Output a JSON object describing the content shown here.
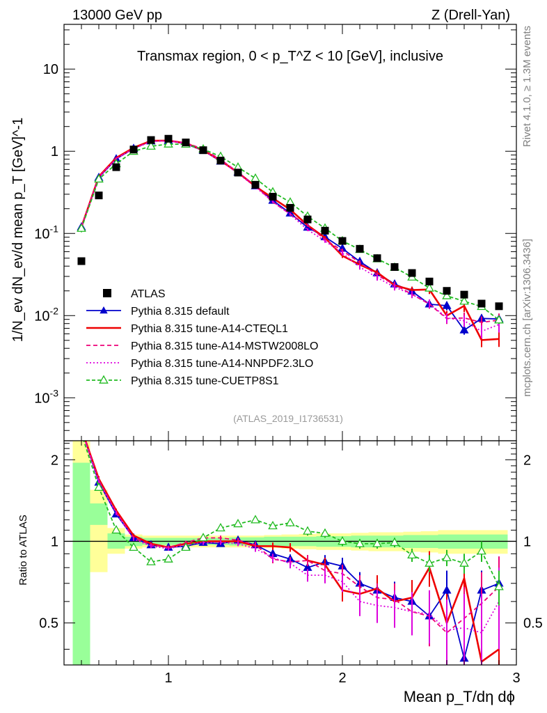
{
  "chart_data": {
    "type": "scatter",
    "header_left": "13000 GeV pp",
    "header_right": "Z (Drell-Yan)",
    "title": "Transmax region, 0 < p_T^Z < 10 [GeV], inclusive",
    "side_label_top": "Rivet 4.1.0, ≥ 1.3M events",
    "side_label_bottom": "mcplots.cern.ch [arXiv:1306.3436]",
    "analysis_ref": "(ATLAS_2019_I1736531)",
    "xlabel": "Mean p_T/dη dϕ",
    "ylabel": "1/N_ev dN_ev/d mean p_T [GeV]^-1",
    "ratio_ylabel": "Ratio to ATLAS",
    "xlim": [
      0.4,
      3.0
    ],
    "ylim": [
      0.0003,
      35
    ],
    "ratio_ylim": [
      0.35,
      2.35
    ],
    "x_ticks": [
      "1",
      "2",
      "3"
    ],
    "y_ticks": [
      "10^-3",
      "10^-2",
      "10^-1",
      "1",
      "10"
    ],
    "ratio_ticks": [
      "0.5",
      "1",
      "2"
    ],
    "x": [
      0.5,
      0.6,
      0.7,
      0.8,
      0.9,
      1.0,
      1.1,
      1.2,
      1.3,
      1.4,
      1.5,
      1.6,
      1.7,
      1.8,
      1.9,
      2.0,
      2.1,
      2.2,
      2.3,
      2.4,
      2.5,
      2.6,
      2.7,
      2.8,
      2.9
    ],
    "data": {
      "name": "ATLAS",
      "values": [
        0.046,
        0.29,
        0.64,
        1.05,
        1.37,
        1.42,
        1.28,
        1.03,
        0.77,
        0.55,
        0.39,
        0.28,
        0.205,
        0.148,
        0.108,
        0.081,
        0.065,
        0.05,
        0.039,
        0.033,
        0.026,
        0.02,
        0.018,
        0.014,
        0.013
      ],
      "ratio_band_stat": [
        [
          0.35,
          1.95
        ],
        [
          1.15,
          1.38
        ],
        [
          0.94,
          1.07
        ],
        [
          0.96,
          1.04
        ],
        [
          0.97,
          1.03
        ],
        [
          0.97,
          1.03
        ],
        [
          0.97,
          1.03
        ],
        [
          0.97,
          1.03
        ],
        [
          0.97,
          1.03
        ],
        [
          0.965,
          1.035
        ],
        [
          0.965,
          1.035
        ],
        [
          0.96,
          1.04
        ],
        [
          0.96,
          1.04
        ],
        [
          0.96,
          1.04
        ],
        [
          0.955,
          1.045
        ],
        [
          0.955,
          1.045
        ],
        [
          0.95,
          1.05
        ],
        [
          0.95,
          1.05
        ],
        [
          0.95,
          1.05
        ],
        [
          0.945,
          1.055
        ],
        [
          0.945,
          1.055
        ],
        [
          0.94,
          1.06
        ],
        [
          0.94,
          1.06
        ],
        [
          0.94,
          1.06
        ],
        [
          0.94,
          1.06
        ]
      ],
      "ratio_band_total": [
        [
          0.35,
          2.35
        ],
        [
          0.77,
          1.55
        ],
        [
          0.9,
          1.12
        ],
        [
          0.94,
          1.06
        ],
        [
          0.95,
          1.05
        ],
        [
          0.95,
          1.05
        ],
        [
          0.95,
          1.05
        ],
        [
          0.95,
          1.05
        ],
        [
          0.95,
          1.05
        ],
        [
          0.95,
          1.05
        ],
        [
          0.95,
          1.05
        ],
        [
          0.945,
          1.055
        ],
        [
          0.94,
          1.06
        ],
        [
          0.935,
          1.065
        ],
        [
          0.93,
          1.07
        ],
        [
          0.93,
          1.07
        ],
        [
          0.925,
          1.075
        ],
        [
          0.92,
          1.08
        ],
        [
          0.92,
          1.08
        ],
        [
          0.915,
          1.085
        ],
        [
          0.91,
          1.09
        ],
        [
          0.9,
          1.1
        ],
        [
          0.9,
          1.1
        ],
        [
          0.9,
          1.1
        ],
        [
          0.9,
          1.1
        ]
      ]
    },
    "series": [
      {
        "name": "Pythia 8.315 default",
        "color": "#0000cc",
        "dash": "",
        "marker": "triangle-filled",
        "ratio": [
          2.6,
          1.65,
          1.26,
          1.03,
          0.97,
          0.95,
          0.96,
          0.99,
          0.98,
          1.01,
          0.97,
          0.9,
          0.86,
          0.8,
          0.84,
          0.81,
          0.7,
          0.66,
          0.62,
          0.6,
          0.53,
          0.66,
          0.37,
          0.66,
          0.7
        ],
        "ratio_err": [
          0.1,
          0.04,
          0.02,
          0.015,
          0.015,
          0.015,
          0.015,
          0.02,
          0.02,
          0.02,
          0.025,
          0.03,
          0.035,
          0.04,
          0.05,
          0.06,
          0.07,
          0.08,
          0.09,
          0.1,
          0.1,
          0.12,
          0.12,
          0.12,
          0.12
        ]
      },
      {
        "name": "Pythia 8.315 tune-A14-CTEQL1",
        "color": "#ee0000",
        "dash": "",
        "marker": "none",
        "ratio": [
          2.6,
          1.7,
          1.3,
          1.05,
          0.98,
          0.95,
          0.98,
          1.0,
          1.0,
          1.0,
          0.96,
          0.96,
          0.95,
          0.85,
          0.82,
          0.66,
          0.64,
          0.67,
          0.6,
          0.62,
          0.8,
          0.5,
          0.73,
          0.36,
          0.4
        ],
        "ratio_err": [
          0.1,
          0.04,
          0.02,
          0.015,
          0.015,
          0.015,
          0.015,
          0.02,
          0.02,
          0.02,
          0.025,
          0.03,
          0.035,
          0.04,
          0.05,
          0.06,
          0.07,
          0.08,
          0.09,
          0.1,
          0.12,
          0.14,
          0.16,
          0.18,
          0.2
        ]
      },
      {
        "name": "Pythia 8.315 tune-A14-MSTW2008LO",
        "color": "#ee0077",
        "dash": "6,4",
        "marker": "none",
        "ratio": [
          2.6,
          1.68,
          1.28,
          1.03,
          0.97,
          0.95,
          0.99,
          1.03,
          1.03,
          1.01,
          0.97,
          0.86,
          0.84,
          0.85,
          0.78,
          0.76,
          0.68,
          0.62,
          0.61,
          0.55,
          0.53,
          0.46,
          0.52,
          0.59,
          0.68
        ],
        "ratio_err": [
          0.1,
          0.04,
          0.02,
          0.015,
          0.015,
          0.015,
          0.015,
          0.02,
          0.02,
          0.02,
          0.025,
          0.03,
          0.035,
          0.04,
          0.05,
          0.06,
          0.07,
          0.08,
          0.09,
          0.1,
          0.12,
          0.14,
          0.16,
          0.18,
          0.2
        ]
      },
      {
        "name": "Pythia 8.315 tune-A14-NNPDF2.3LO",
        "color": "#dd00dd",
        "dash": "2,3",
        "marker": "none",
        "ratio": [
          2.6,
          1.65,
          1.27,
          1.02,
          0.96,
          0.94,
          0.97,
          0.99,
          0.99,
          0.98,
          0.94,
          0.87,
          0.83,
          0.75,
          0.75,
          0.71,
          0.6,
          0.58,
          0.57,
          0.55,
          0.54,
          0.47,
          0.48,
          0.46,
          0.6
        ],
        "ratio_err": [
          0.1,
          0.04,
          0.02,
          0.015,
          0.015,
          0.015,
          0.015,
          0.02,
          0.02,
          0.02,
          0.025,
          0.03,
          0.035,
          0.04,
          0.05,
          0.06,
          0.07,
          0.08,
          0.09,
          0.1,
          0.12,
          0.14,
          0.16,
          0.18,
          0.2
        ]
      },
      {
        "name": "Pythia 8.315 tune-CUETP8S1",
        "color": "#22bb22",
        "dash": "5,3",
        "marker": "triangle-open",
        "ratio": [
          2.5,
          1.58,
          1.1,
          0.95,
          0.84,
          0.86,
          0.95,
          1.03,
          1.12,
          1.16,
          1.2,
          1.14,
          1.17,
          1.09,
          1.07,
          1.0,
          0.98,
          0.98,
          0.99,
          0.89,
          0.83,
          0.87,
          0.83,
          0.92,
          0.68
        ],
        "ratio_err": [
          0.1,
          0.04,
          0.02,
          0.015,
          0.015,
          0.015,
          0.015,
          0.02,
          0.02,
          0.02,
          0.025,
          0.03,
          0.035,
          0.04,
          0.04,
          0.04,
          0.04,
          0.04,
          0.04,
          0.05,
          0.06,
          0.06,
          0.07,
          0.08,
          0.1
        ]
      }
    ]
  }
}
